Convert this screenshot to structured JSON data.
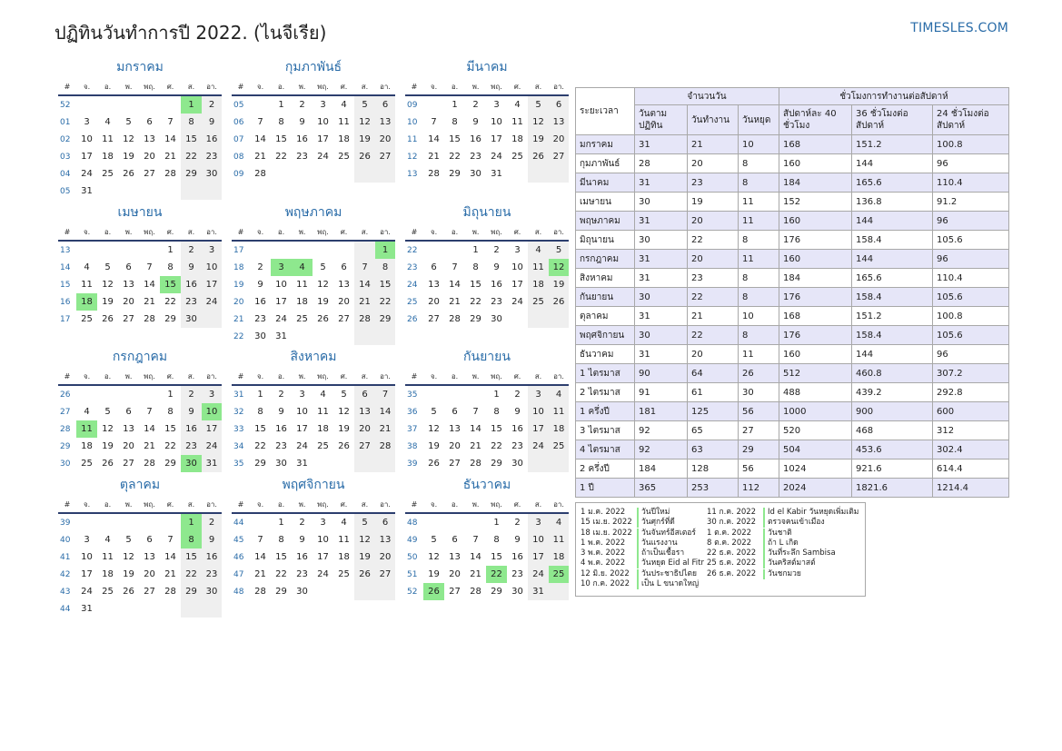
{
  "header": {
    "title": "ปฏิทินวันทำการปี 2022. (ไนจีเรีย)",
    "site": "TIMESLES.COM"
  },
  "calendar": {
    "weekdays": [
      "#",
      "จ.",
      "อ.",
      "พ.",
      "พฤ.",
      "ศ.",
      "ส.",
      "อา."
    ],
    "months": [
      {
        "name": "มกราคม",
        "weeks": [
          {
            "wk": "52",
            "days": [
              "",
              "",
              "",
              "",
              "",
              "1",
              "2"
            ]
          },
          {
            "wk": "01",
            "days": [
              "3",
              "4",
              "5",
              "6",
              "7",
              "8",
              "9"
            ]
          },
          {
            "wk": "02",
            "days": [
              "10",
              "11",
              "12",
              "13",
              "14",
              "15",
              "16"
            ]
          },
          {
            "wk": "03",
            "days": [
              "17",
              "18",
              "19",
              "20",
              "21",
              "22",
              "23"
            ]
          },
          {
            "wk": "04",
            "days": [
              "24",
              "25",
              "26",
              "27",
              "28",
              "29",
              "30"
            ]
          },
          {
            "wk": "05",
            "days": [
              "31",
              "",
              "",
              "",
              "",
              "",
              ""
            ]
          }
        ],
        "holidays": [
          "1"
        ]
      },
      {
        "name": "กุมภาพันธ์",
        "weeks": [
          {
            "wk": "05",
            "days": [
              "",
              "1",
              "2",
              "3",
              "4",
              "5",
              "6"
            ]
          },
          {
            "wk": "06",
            "days": [
              "7",
              "8",
              "9",
              "10",
              "11",
              "12",
              "13"
            ]
          },
          {
            "wk": "07",
            "days": [
              "14",
              "15",
              "16",
              "17",
              "18",
              "19",
              "20"
            ]
          },
          {
            "wk": "08",
            "days": [
              "21",
              "22",
              "23",
              "24",
              "25",
              "26",
              "27"
            ]
          },
          {
            "wk": "09",
            "days": [
              "28",
              "",
              "",
              "",
              "",
              "",
              ""
            ]
          }
        ],
        "holidays": []
      },
      {
        "name": "มีนาคม",
        "weeks": [
          {
            "wk": "09",
            "days": [
              "",
              "1",
              "2",
              "3",
              "4",
              "5",
              "6"
            ]
          },
          {
            "wk": "10",
            "days": [
              "7",
              "8",
              "9",
              "10",
              "11",
              "12",
              "13"
            ]
          },
          {
            "wk": "11",
            "days": [
              "14",
              "15",
              "16",
              "17",
              "18",
              "19",
              "20"
            ]
          },
          {
            "wk": "12",
            "days": [
              "21",
              "22",
              "23",
              "24",
              "25",
              "26",
              "27"
            ]
          },
          {
            "wk": "13",
            "days": [
              "28",
              "29",
              "30",
              "31",
              "",
              "",
              ""
            ]
          }
        ],
        "holidays": []
      },
      {
        "name": "เมษายน",
        "weeks": [
          {
            "wk": "13",
            "days": [
              "",
              "",
              "",
              "",
              "1",
              "2",
              "3"
            ]
          },
          {
            "wk": "14",
            "days": [
              "4",
              "5",
              "6",
              "7",
              "8",
              "9",
              "10"
            ]
          },
          {
            "wk": "15",
            "days": [
              "11",
              "12",
              "13",
              "14",
              "15",
              "16",
              "17"
            ]
          },
          {
            "wk": "16",
            "days": [
              "18",
              "19",
              "20",
              "21",
              "22",
              "23",
              "24"
            ]
          },
          {
            "wk": "17",
            "days": [
              "25",
              "26",
              "27",
              "28",
              "29",
              "30",
              ""
            ]
          }
        ],
        "holidays": [
          "15",
          "18"
        ]
      },
      {
        "name": "พฤษภาคม",
        "weeks": [
          {
            "wk": "17",
            "days": [
              "",
              "",
              "",
              "",
              "",
              "",
              "1"
            ]
          },
          {
            "wk": "18",
            "days": [
              "2",
              "3",
              "4",
              "5",
              "6",
              "7",
              "8"
            ]
          },
          {
            "wk": "19",
            "days": [
              "9",
              "10",
              "11",
              "12",
              "13",
              "14",
              "15"
            ]
          },
          {
            "wk": "20",
            "days": [
              "16",
              "17",
              "18",
              "19",
              "20",
              "21",
              "22"
            ]
          },
          {
            "wk": "21",
            "days": [
              "23",
              "24",
              "25",
              "26",
              "27",
              "28",
              "29"
            ]
          },
          {
            "wk": "22",
            "days": [
              "30",
              "31",
              "",
              "",
              "",
              "",
              ""
            ]
          }
        ],
        "holidays": [
          "1",
          "3",
          "4"
        ]
      },
      {
        "name": "มิถุนายน",
        "weeks": [
          {
            "wk": "22",
            "days": [
              "",
              "",
              "1",
              "2",
              "3",
              "4",
              "5"
            ]
          },
          {
            "wk": "23",
            "days": [
              "6",
              "7",
              "8",
              "9",
              "10",
              "11",
              "12"
            ]
          },
          {
            "wk": "24",
            "days": [
              "13",
              "14",
              "15",
              "16",
              "17",
              "18",
              "19"
            ]
          },
          {
            "wk": "25",
            "days": [
              "20",
              "21",
              "22",
              "23",
              "24",
              "25",
              "26"
            ]
          },
          {
            "wk": "26",
            "days": [
              "27",
              "28",
              "29",
              "30",
              "",
              "",
              ""
            ]
          }
        ],
        "holidays": [
          "12"
        ]
      },
      {
        "name": "กรกฎาคม",
        "weeks": [
          {
            "wk": "26",
            "days": [
              "",
              "",
              "",
              "",
              "1",
              "2",
              "3"
            ]
          },
          {
            "wk": "27",
            "days": [
              "4",
              "5",
              "6",
              "7",
              "8",
              "9",
              "10"
            ]
          },
          {
            "wk": "28",
            "days": [
              "11",
              "12",
              "13",
              "14",
              "15",
              "16",
              "17"
            ]
          },
          {
            "wk": "29",
            "days": [
              "18",
              "19",
              "20",
              "21",
              "22",
              "23",
              "24"
            ]
          },
          {
            "wk": "30",
            "days": [
              "25",
              "26",
              "27",
              "28",
              "29",
              "30",
              "31"
            ]
          }
        ],
        "holidays": [
          "10",
          "11",
          "30"
        ]
      },
      {
        "name": "สิงหาคม",
        "weeks": [
          {
            "wk": "31",
            "days": [
              "1",
              "2",
              "3",
              "4",
              "5",
              "6",
              "7"
            ]
          },
          {
            "wk": "32",
            "days": [
              "8",
              "9",
              "10",
              "11",
              "12",
              "13",
              "14"
            ]
          },
          {
            "wk": "33",
            "days": [
              "15",
              "16",
              "17",
              "18",
              "19",
              "20",
              "21"
            ]
          },
          {
            "wk": "34",
            "days": [
              "22",
              "23",
              "24",
              "25",
              "26",
              "27",
              "28"
            ]
          },
          {
            "wk": "35",
            "days": [
              "29",
              "30",
              "31",
              "",
              "",
              "",
              ""
            ]
          }
        ],
        "holidays": []
      },
      {
        "name": "กันยายน",
        "weeks": [
          {
            "wk": "35",
            "days": [
              "",
              "",
              "",
              "1",
              "2",
              "3",
              "4"
            ]
          },
          {
            "wk": "36",
            "days": [
              "5",
              "6",
              "7",
              "8",
              "9",
              "10",
              "11"
            ]
          },
          {
            "wk": "37",
            "days": [
              "12",
              "13",
              "14",
              "15",
              "16",
              "17",
              "18"
            ]
          },
          {
            "wk": "38",
            "days": [
              "19",
              "20",
              "21",
              "22",
              "23",
              "24",
              "25"
            ]
          },
          {
            "wk": "39",
            "days": [
              "26",
              "27",
              "28",
              "29",
              "30",
              "",
              ""
            ]
          }
        ],
        "holidays": []
      },
      {
        "name": "ตุลาคม",
        "weeks": [
          {
            "wk": "39",
            "days": [
              "",
              "",
              "",
              "",
              "",
              "1",
              "2"
            ]
          },
          {
            "wk": "40",
            "days": [
              "3",
              "4",
              "5",
              "6",
              "7",
              "8",
              "9"
            ]
          },
          {
            "wk": "41",
            "days": [
              "10",
              "11",
              "12",
              "13",
              "14",
              "15",
              "16"
            ]
          },
          {
            "wk": "42",
            "days": [
              "17",
              "18",
              "19",
              "20",
              "21",
              "22",
              "23"
            ]
          },
          {
            "wk": "43",
            "days": [
              "24",
              "25",
              "26",
              "27",
              "28",
              "29",
              "30"
            ]
          },
          {
            "wk": "44",
            "days": [
              "31",
              "",
              "",
              "",
              "",
              "",
              ""
            ]
          }
        ],
        "holidays": [
          "1",
          "8"
        ]
      },
      {
        "name": "พฤศจิกายน",
        "weeks": [
          {
            "wk": "44",
            "days": [
              "",
              "1",
              "2",
              "3",
              "4",
              "5",
              "6"
            ]
          },
          {
            "wk": "45",
            "days": [
              "7",
              "8",
              "9",
              "10",
              "11",
              "12",
              "13"
            ]
          },
          {
            "wk": "46",
            "days": [
              "14",
              "15",
              "16",
              "17",
              "18",
              "19",
              "20"
            ]
          },
          {
            "wk": "47",
            "days": [
              "21",
              "22",
              "23",
              "24",
              "25",
              "26",
              "27"
            ]
          },
          {
            "wk": "48",
            "days": [
              "28",
              "29",
              "30",
              "",
              "",
              "",
              ""
            ]
          }
        ],
        "holidays": []
      },
      {
        "name": "ธันวาคม",
        "weeks": [
          {
            "wk": "48",
            "days": [
              "",
              "",
              "",
              "1",
              "2",
              "3",
              "4"
            ]
          },
          {
            "wk": "49",
            "days": [
              "5",
              "6",
              "7",
              "8",
              "9",
              "10",
              "11"
            ]
          },
          {
            "wk": "50",
            "days": [
              "12",
              "13",
              "14",
              "15",
              "16",
              "17",
              "18"
            ]
          },
          {
            "wk": "51",
            "days": [
              "19",
              "20",
              "21",
              "22",
              "23",
              "24",
              "25"
            ]
          },
          {
            "wk": "52",
            "days": [
              "26",
              "27",
              "28",
              "29",
              "30",
              "31",
              ""
            ]
          }
        ],
        "holidays": [
          "22",
          "25",
          "26"
        ]
      }
    ],
    "colors": {
      "holiday": "#8ee88e",
      "weekend": "#efefef",
      "accent": "#2a6ca8",
      "header_line": "#2c3e6e"
    }
  },
  "summary": {
    "period_header": "ระยะเวลา",
    "days_header": "จำนวนวัน",
    "hours_header": "ชั่วโมงการทำงานต่อสัปดาห์",
    "sub_headers": [
      "วันตาม ปฏิทิน",
      "วันทำงาน",
      "วันหยุด",
      "สัปดาห์ละ 40 ชั่วโมง",
      "36 ชั่วโมงต่อ สัปดาห์",
      "24 ชั่วโมงต่อ สัปดาห์"
    ],
    "rows": [
      [
        "มกราคม",
        "31",
        "21",
        "10",
        "168",
        "151.2",
        "100.8"
      ],
      [
        "กุมภาพันธ์",
        "28",
        "20",
        "8",
        "160",
        "144",
        "96"
      ],
      [
        "มีนาคม",
        "31",
        "23",
        "8",
        "184",
        "165.6",
        "110.4"
      ],
      [
        "เมษายน",
        "30",
        "19",
        "11",
        "152",
        "136.8",
        "91.2"
      ],
      [
        "พฤษภาคม",
        "31",
        "20",
        "11",
        "160",
        "144",
        "96"
      ],
      [
        "มิถุนายน",
        "30",
        "22",
        "8",
        "176",
        "158.4",
        "105.6"
      ],
      [
        "กรกฎาคม",
        "31",
        "20",
        "11",
        "160",
        "144",
        "96"
      ],
      [
        "สิงหาคม",
        "31",
        "23",
        "8",
        "184",
        "165.6",
        "110.4"
      ],
      [
        "กันยายน",
        "30",
        "22",
        "8",
        "176",
        "158.4",
        "105.6"
      ],
      [
        "ตุลาคม",
        "31",
        "21",
        "10",
        "168",
        "151.2",
        "100.8"
      ],
      [
        "พฤศจิกายน",
        "30",
        "22",
        "8",
        "176",
        "158.4",
        "105.6"
      ],
      [
        "ธันวาคม",
        "31",
        "20",
        "11",
        "160",
        "144",
        "96"
      ],
      [
        "1 ไตรมาส",
        "90",
        "64",
        "26",
        "512",
        "460.8",
        "307.2"
      ],
      [
        "2 ไตรมาส",
        "91",
        "61",
        "30",
        "488",
        "439.2",
        "292.8"
      ],
      [
        "1 ครึ่งปี",
        "181",
        "125",
        "56",
        "1000",
        "900",
        "600"
      ],
      [
        "3 ไตรมาส",
        "92",
        "65",
        "27",
        "520",
        "468",
        "312"
      ],
      [
        "4 ไตรมาส",
        "92",
        "63",
        "29",
        "504",
        "453.6",
        "302.4"
      ],
      [
        "2 ครึ่งปี",
        "184",
        "128",
        "56",
        "1024",
        "921.6",
        "614.4"
      ],
      [
        "1 ปี",
        "365",
        "253",
        "112",
        "2024",
        "1821.6",
        "1214.4"
      ]
    ]
  },
  "holidays_list": {
    "col1": [
      {
        "date": "1 ม.ค. 2022",
        "name": "วันปีใหม่"
      },
      {
        "date": "15 เม.ย. 2022",
        "name": "วันศุกร์ที่ดี"
      },
      {
        "date": "18 เม.ย. 2022",
        "name": "วันจันทร์อีสเตอร์"
      },
      {
        "date": "1 พ.ค. 2022",
        "name": "วันแรงงาน"
      },
      {
        "date": "3 พ.ค. 2022",
        "name": "ถ้าเป็นเชื้อรา"
      },
      {
        "date": "4 พ.ค. 2022",
        "name": "วันหยุด Eid al Fitr"
      },
      {
        "date": "12 มิ.ย. 2022",
        "name": "วันประชาธิปไตย"
      },
      {
        "date": "10 ก.ค. 2022",
        "name": "เป็น L ขนาดใหญ่"
      }
    ],
    "col2": [
      {
        "date": "11 ก.ค. 2022",
        "name": "Id el Kabir วันหยุดเพิ่มเติม"
      },
      {
        "date": "30 ก.ค. 2022",
        "name": "ตรวจคนเข้าเมือง"
      },
      {
        "date": "1 ต.ค. 2022",
        "name": "วันชาติ"
      },
      {
        "date": "8 ต.ค. 2022",
        "name": "ถ้า L เกิด"
      },
      {
        "date": "22 ธ.ค. 2022",
        "name": "วันที่ระลึก Sambisa"
      },
      {
        "date": "25 ธ.ค. 2022",
        "name": "วันคริสต์มาสต์"
      },
      {
        "date": "26 ธ.ค. 2022",
        "name": "วันชกมวย"
      }
    ]
  }
}
